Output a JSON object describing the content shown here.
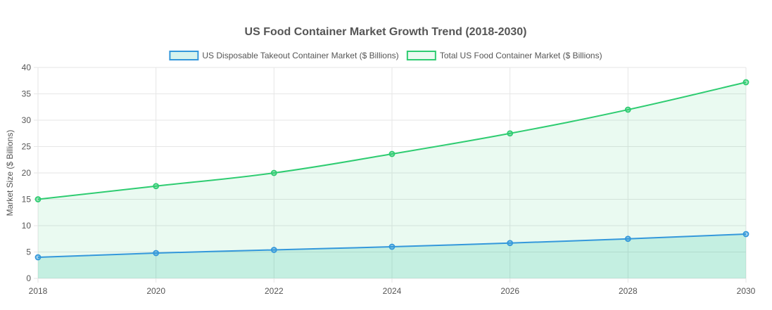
{
  "chart_data": {
    "type": "line",
    "title": "US Food Container Market Growth Trend (2018-2030)",
    "xlabel": "",
    "ylabel": "Market Size ($ Billions)",
    "x": [
      2018,
      2020,
      2022,
      2024,
      2026,
      2028,
      2030
    ],
    "x_tick_labels": [
      "2018",
      "2020",
      "2022",
      "2024",
      "2026",
      "2028",
      "2030"
    ],
    "ylim": [
      0,
      40
    ],
    "y_ticks": [
      0,
      5,
      10,
      15,
      20,
      25,
      30,
      35,
      40
    ],
    "grid": true,
    "legend_position": "top-center",
    "series": [
      {
        "name": "US Disposable Takeout Container Market ($ Billions)",
        "values": [
          4.0,
          4.8,
          5.4,
          6.0,
          6.7,
          7.5,
          8.4
        ],
        "color": "#3498db",
        "fill": "rgba(26,188,156,0.18)"
      },
      {
        "name": "Total US Food Container Market ($ Billions)",
        "values": [
          15.0,
          17.5,
          20.0,
          23.6,
          27.5,
          32.0,
          37.2
        ],
        "color": "#2ecc71",
        "fill": "rgba(46,204,113,0.10)"
      }
    ]
  }
}
